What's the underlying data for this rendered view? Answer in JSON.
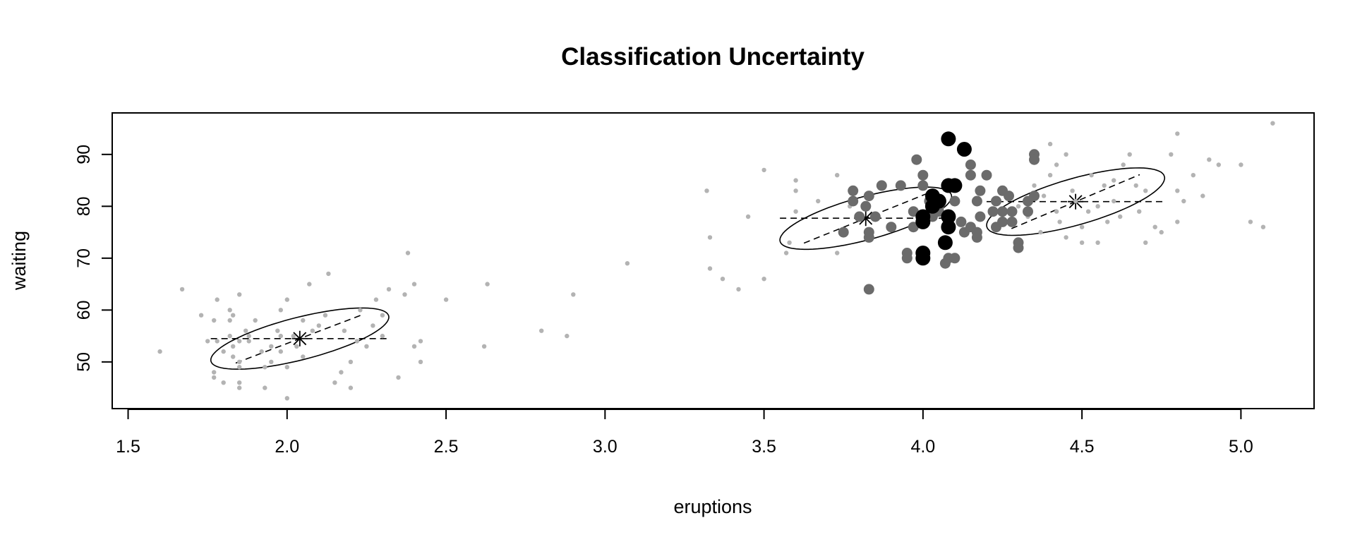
{
  "chart_data": {
    "type": "scatter",
    "title": "Classification Uncertainty",
    "xlabel": "eruptions",
    "ylabel": "waiting",
    "xlim": [
      1.45,
      5.23
    ],
    "ylim": [
      41,
      98
    ],
    "xticks": [
      "1.5",
      "2.0",
      "2.5",
      "3.0",
      "3.5",
      "4.0",
      "4.5",
      "5.0"
    ],
    "yticks": [
      "50",
      "60",
      "70",
      "80",
      "90"
    ],
    "grid": false,
    "legend": "none",
    "colors": {
      "low": "#b3b3b3",
      "medium": "#6b6b6b",
      "high": "#000000",
      "axis": "#000000"
    },
    "components": [
      {
        "mean": [
          2.04,
          54.5
        ],
        "sd": [
          0.28,
          5.9
        ],
        "r": 0.7
      },
      {
        "mean": [
          3.82,
          77.7
        ],
        "sd": [
          0.27,
          6.0
        ],
        "r": 0.7
      },
      {
        "mean": [
          4.48,
          80.9
        ],
        "sd": [
          0.28,
          6.5
        ],
        "r": 0.7
      }
    ],
    "series": [
      {
        "level": "low",
        "points": [
          [
            1.6,
            52
          ],
          [
            1.67,
            64
          ],
          [
            1.73,
            59
          ],
          [
            1.75,
            54
          ],
          [
            1.77,
            58
          ],
          [
            1.77,
            47
          ],
          [
            1.77,
            48
          ],
          [
            1.78,
            62
          ],
          [
            1.78,
            54
          ],
          [
            1.8,
            52
          ],
          [
            1.8,
            46
          ],
          [
            1.82,
            60
          ],
          [
            1.82,
            58
          ],
          [
            1.82,
            55
          ],
          [
            1.83,
            53
          ],
          [
            1.83,
            51
          ],
          [
            1.83,
            59
          ],
          [
            1.85,
            54
          ],
          [
            1.85,
            46
          ],
          [
            1.85,
            50
          ],
          [
            1.85,
            49
          ],
          [
            1.85,
            45
          ],
          [
            1.85,
            63
          ],
          [
            1.87,
            56
          ],
          [
            1.88,
            54
          ],
          [
            1.88,
            55
          ],
          [
            1.9,
            58
          ],
          [
            1.92,
            52
          ],
          [
            1.93,
            45
          ],
          [
            1.93,
            49
          ],
          [
            1.95,
            53
          ],
          [
            1.95,
            50
          ],
          [
            1.97,
            56
          ],
          [
            1.98,
            55
          ],
          [
            1.98,
            60
          ],
          [
            1.98,
            52
          ],
          [
            2.0,
            62
          ],
          [
            2.0,
            49
          ],
          [
            2.0,
            43
          ],
          [
            2.02,
            55
          ],
          [
            2.03,
            53
          ],
          [
            2.05,
            51
          ],
          [
            2.05,
            58
          ],
          [
            2.07,
            65
          ],
          [
            2.08,
            56
          ],
          [
            2.1,
            57
          ],
          [
            2.12,
            59
          ],
          [
            2.13,
            67
          ],
          [
            2.15,
            46
          ],
          [
            2.17,
            48
          ],
          [
            2.18,
            56
          ],
          [
            2.2,
            45
          ],
          [
            2.2,
            50
          ],
          [
            2.22,
            54
          ],
          [
            2.23,
            60
          ],
          [
            2.25,
            53
          ],
          [
            2.27,
            57
          ],
          [
            2.28,
            62
          ],
          [
            2.3,
            59
          ],
          [
            2.3,
            55
          ],
          [
            2.32,
            64
          ],
          [
            2.35,
            47
          ],
          [
            2.37,
            63
          ],
          [
            2.38,
            71
          ],
          [
            2.4,
            65
          ],
          [
            2.4,
            53
          ],
          [
            2.42,
            54
          ],
          [
            2.42,
            50
          ],
          [
            2.5,
            62
          ],
          [
            2.62,
            53
          ],
          [
            2.63,
            65
          ],
          [
            2.8,
            56
          ],
          [
            2.88,
            55
          ],
          [
            2.9,
            63
          ],
          [
            3.07,
            69
          ],
          [
            3.32,
            83
          ],
          [
            3.33,
            74
          ],
          [
            3.33,
            68
          ],
          [
            3.37,
            66
          ],
          [
            3.42,
            64
          ],
          [
            3.45,
            78
          ],
          [
            3.5,
            66
          ],
          [
            3.5,
            87
          ],
          [
            3.57,
            71
          ],
          [
            3.58,
            73
          ],
          [
            3.6,
            85
          ],
          [
            3.6,
            83
          ],
          [
            3.6,
            79
          ],
          [
            3.67,
            81
          ],
          [
            3.73,
            71
          ],
          [
            3.73,
            86
          ],
          [
            3.77,
            80
          ],
          [
            4.3,
            80
          ],
          [
            4.33,
            78
          ],
          [
            4.35,
            84
          ],
          [
            4.37,
            75
          ],
          [
            4.38,
            82
          ],
          [
            4.4,
            92
          ],
          [
            4.4,
            86
          ],
          [
            4.42,
            79
          ],
          [
            4.42,
            88
          ],
          [
            4.43,
            77
          ],
          [
            4.45,
            74
          ],
          [
            4.45,
            90
          ],
          [
            4.47,
            83
          ],
          [
            4.48,
            81
          ],
          [
            4.5,
            73
          ],
          [
            4.5,
            76
          ],
          [
            4.52,
            79
          ],
          [
            4.53,
            86
          ],
          [
            4.55,
            73
          ],
          [
            4.55,
            80
          ],
          [
            4.57,
            84
          ],
          [
            4.58,
            77
          ],
          [
            4.6,
            85
          ],
          [
            4.6,
            81
          ],
          [
            4.62,
            78
          ],
          [
            4.63,
            88
          ],
          [
            4.65,
            90
          ],
          [
            4.67,
            84
          ],
          [
            4.68,
            79
          ],
          [
            4.7,
            73
          ],
          [
            4.7,
            83
          ],
          [
            4.73,
            76
          ],
          [
            4.75,
            75
          ],
          [
            4.78,
            90
          ],
          [
            4.8,
            77
          ],
          [
            4.8,
            83
          ],
          [
            4.8,
            94
          ],
          [
            4.82,
            81
          ],
          [
            4.85,
            86
          ],
          [
            4.88,
            82
          ],
          [
            4.9,
            89
          ],
          [
            4.93,
            88
          ],
          [
            5.0,
            88
          ],
          [
            5.03,
            77
          ],
          [
            5.07,
            76
          ],
          [
            5.1,
            96
          ]
        ]
      },
      {
        "level": "medium",
        "points": [
          [
            3.75,
            75
          ],
          [
            3.78,
            81
          ],
          [
            3.78,
            83
          ],
          [
            3.8,
            78
          ],
          [
            3.82,
            80
          ],
          [
            3.83,
            74
          ],
          [
            3.83,
            75
          ],
          [
            3.83,
            82
          ],
          [
            3.83,
            64
          ],
          [
            3.85,
            78
          ],
          [
            3.87,
            84
          ],
          [
            3.9,
            76
          ],
          [
            3.93,
            84
          ],
          [
            3.95,
            71
          ],
          [
            3.95,
            70
          ],
          [
            3.97,
            79
          ],
          [
            3.97,
            76
          ],
          [
            3.98,
            89
          ],
          [
            4.0,
            86
          ],
          [
            4.0,
            84
          ],
          [
            4.0,
            77
          ],
          [
            4.02,
            81
          ],
          [
            4.03,
            78
          ],
          [
            4.05,
            79
          ],
          [
            4.05,
            80
          ],
          [
            4.07,
            69
          ],
          [
            4.08,
            70
          ],
          [
            4.1,
            70
          ],
          [
            4.1,
            81
          ],
          [
            4.12,
            77
          ],
          [
            4.13,
            75
          ],
          [
            4.15,
            76
          ],
          [
            4.15,
            88
          ],
          [
            4.15,
            86
          ],
          [
            4.17,
            74
          ],
          [
            4.17,
            81
          ],
          [
            4.17,
            75
          ],
          [
            4.18,
            78
          ],
          [
            4.18,
            83
          ],
          [
            4.2,
            86
          ],
          [
            4.22,
            79
          ],
          [
            4.23,
            81
          ],
          [
            4.23,
            76
          ],
          [
            4.25,
            83
          ],
          [
            4.25,
            77
          ],
          [
            4.25,
            79
          ],
          [
            4.27,
            82
          ],
          [
            4.28,
            79
          ],
          [
            4.28,
            77
          ],
          [
            4.3,
            73
          ],
          [
            4.3,
            72
          ],
          [
            4.33,
            79
          ],
          [
            4.33,
            81
          ],
          [
            4.35,
            82
          ],
          [
            4.35,
            90
          ],
          [
            4.35,
            89
          ]
        ]
      },
      {
        "level": "high",
        "points": [
          [
            4.0,
            78
          ],
          [
            4.0,
            77
          ],
          [
            4.0,
            71
          ],
          [
            4.0,
            70
          ],
          [
            4.03,
            80
          ],
          [
            4.03,
            82
          ],
          [
            4.05,
            81
          ],
          [
            4.07,
            73
          ],
          [
            4.08,
            93
          ],
          [
            4.08,
            84
          ],
          [
            4.08,
            78
          ],
          [
            4.08,
            76
          ],
          [
            4.1,
            84
          ],
          [
            4.13,
            91
          ]
        ]
      }
    ]
  }
}
